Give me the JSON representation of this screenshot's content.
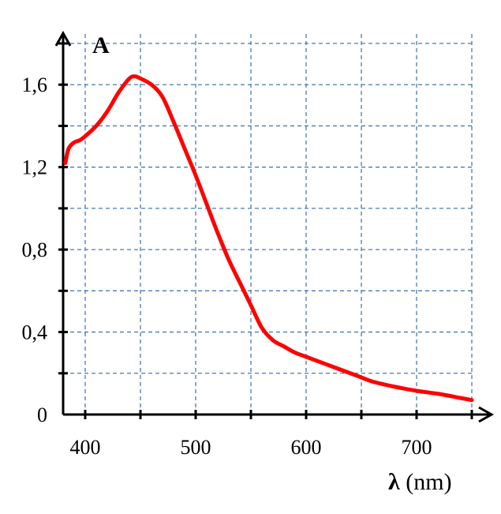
{
  "chart_data": {
    "type": "line",
    "ylabel": "A",
    "xlabel_symbol": "λ",
    "xlabel_unit": " (nm)",
    "xlim": [
      380,
      750
    ],
    "ylim": [
      0,
      1.8
    ],
    "x_ticks": [
      400,
      500,
      600,
      700
    ],
    "x_tick_labels": [
      "400",
      "500",
      "600",
      "700"
    ],
    "x_grid": [
      400,
      450,
      500,
      550,
      600,
      650,
      700,
      750
    ],
    "y_ticks": [
      0,
      0.4,
      0.8,
      1.2,
      1.6
    ],
    "y_tick_labels": [
      "0",
      "0,4",
      "0,8",
      "1,2",
      "1,6"
    ],
    "y_grid": [
      0.2,
      0.4,
      0.6,
      0.8,
      1.0,
      1.2,
      1.4,
      1.6,
      1.8
    ],
    "grid": true,
    "colors": {
      "line": "#ff0000",
      "grid": "#4a7ab5",
      "axis": "#000000"
    },
    "series": [
      {
        "x": [
          382,
          385,
          390,
          395,
          400,
          410,
          420,
          430,
          440,
          445,
          450,
          460,
          470,
          480,
          490,
          500,
          510,
          520,
          530,
          540,
          550,
          560,
          570,
          580,
          590,
          600,
          620,
          640,
          650,
          660,
          680,
          700,
          720,
          740,
          750
        ],
        "y": [
          1.22,
          1.29,
          1.32,
          1.33,
          1.35,
          1.4,
          1.47,
          1.56,
          1.63,
          1.64,
          1.63,
          1.6,
          1.54,
          1.42,
          1.29,
          1.16,
          1.02,
          0.88,
          0.75,
          0.64,
          0.53,
          0.42,
          0.36,
          0.33,
          0.3,
          0.28,
          0.24,
          0.2,
          0.18,
          0.16,
          0.135,
          0.115,
          0.1,
          0.08,
          0.07
        ]
      }
    ]
  }
}
